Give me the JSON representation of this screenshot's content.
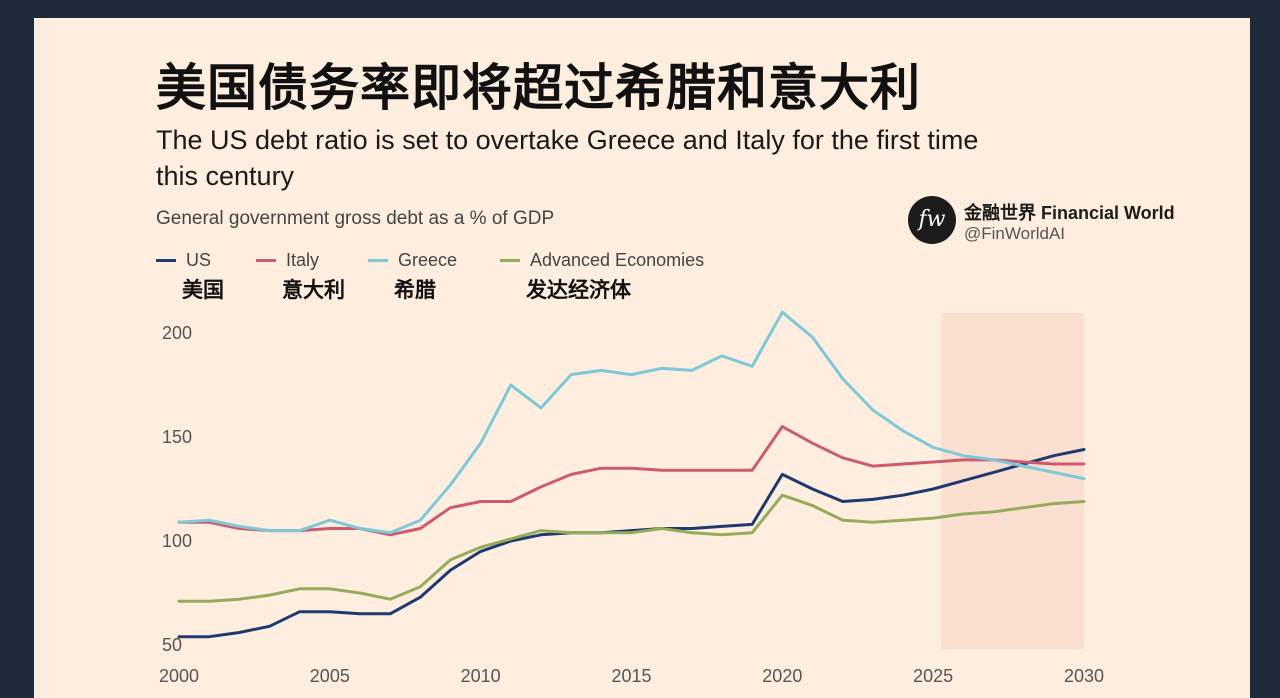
{
  "header": {
    "title_cn": "美国债务率即将超过希腊和意大利",
    "title_en": "The US debt ratio is set to overtake Greece and Italy for the first time this century",
    "subtitle": "General government gross debt as a % of GDP"
  },
  "brand": {
    "logo_text": "fw",
    "name": "金融世界 Financial World",
    "handle": "@FinWorldAI"
  },
  "chart_data": {
    "type": "line",
    "title": "The US debt ratio is set to overtake Greece and Italy for the first time this century",
    "ylabel": "General government gross debt as a % of GDP",
    "xlabel": "",
    "xlim": [
      2000,
      2030
    ],
    "ylim": [
      50,
      210
    ],
    "x_ticks": [
      "2000",
      "2005",
      "2010",
      "2015",
      "2020",
      "2025",
      "2030"
    ],
    "y_ticks": [
      "50",
      "100",
      "150",
      "200"
    ],
    "forecast_shading": [
      2025,
      2030
    ],
    "x": [
      2000,
      2001,
      2002,
      2003,
      2004,
      2005,
      2006,
      2007,
      2008,
      2009,
      2010,
      2011,
      2012,
      2013,
      2014,
      2015,
      2016,
      2017,
      2018,
      2019,
      2020,
      2021,
      2022,
      2023,
      2024,
      2025,
      2026,
      2027,
      2028,
      2029,
      2030
    ],
    "series": [
      {
        "name": "US",
        "name_cn": "美国",
        "color": "#1f3a6e",
        "values": [
          54,
          54,
          56,
          59,
          66,
          66,
          65,
          65,
          73,
          86,
          95,
          100,
          103,
          104,
          104,
          105,
          106,
          106,
          107,
          108,
          132,
          125,
          119,
          120,
          122,
          125,
          129,
          133,
          137,
          141,
          144
        ]
      },
      {
        "name": "Italy",
        "name_cn": "意大利",
        "color": "#cc5b6f",
        "values": [
          109,
          109,
          106,
          105,
          105,
          106,
          106,
          103,
          106,
          116,
          119,
          119,
          126,
          132,
          135,
          135,
          134,
          134,
          134,
          134,
          155,
          147,
          140,
          136,
          137,
          138,
          139,
          139,
          138,
          137,
          137
        ]
      },
      {
        "name": "Greece",
        "name_cn": "希腊",
        "color": "#7fc8d8",
        "values": [
          109,
          110,
          107,
          105,
          105,
          110,
          106,
          104,
          110,
          127,
          147,
          175,
          164,
          180,
          182,
          180,
          183,
          182,
          189,
          184,
          210,
          198,
          178,
          163,
          153,
          145,
          141,
          139,
          136,
          133,
          130
        ]
      },
      {
        "name": "Advanced Economies",
        "name_cn": "发达经济体",
        "color": "#95ac5a",
        "values": [
          71,
          71,
          72,
          74,
          77,
          77,
          75,
          72,
          78,
          91,
          97,
          101,
          105,
          104,
          104,
          104,
          106,
          104,
          103,
          104,
          122,
          117,
          110,
          109,
          110,
          111,
          113,
          114,
          116,
          118,
          119
        ]
      }
    ]
  }
}
